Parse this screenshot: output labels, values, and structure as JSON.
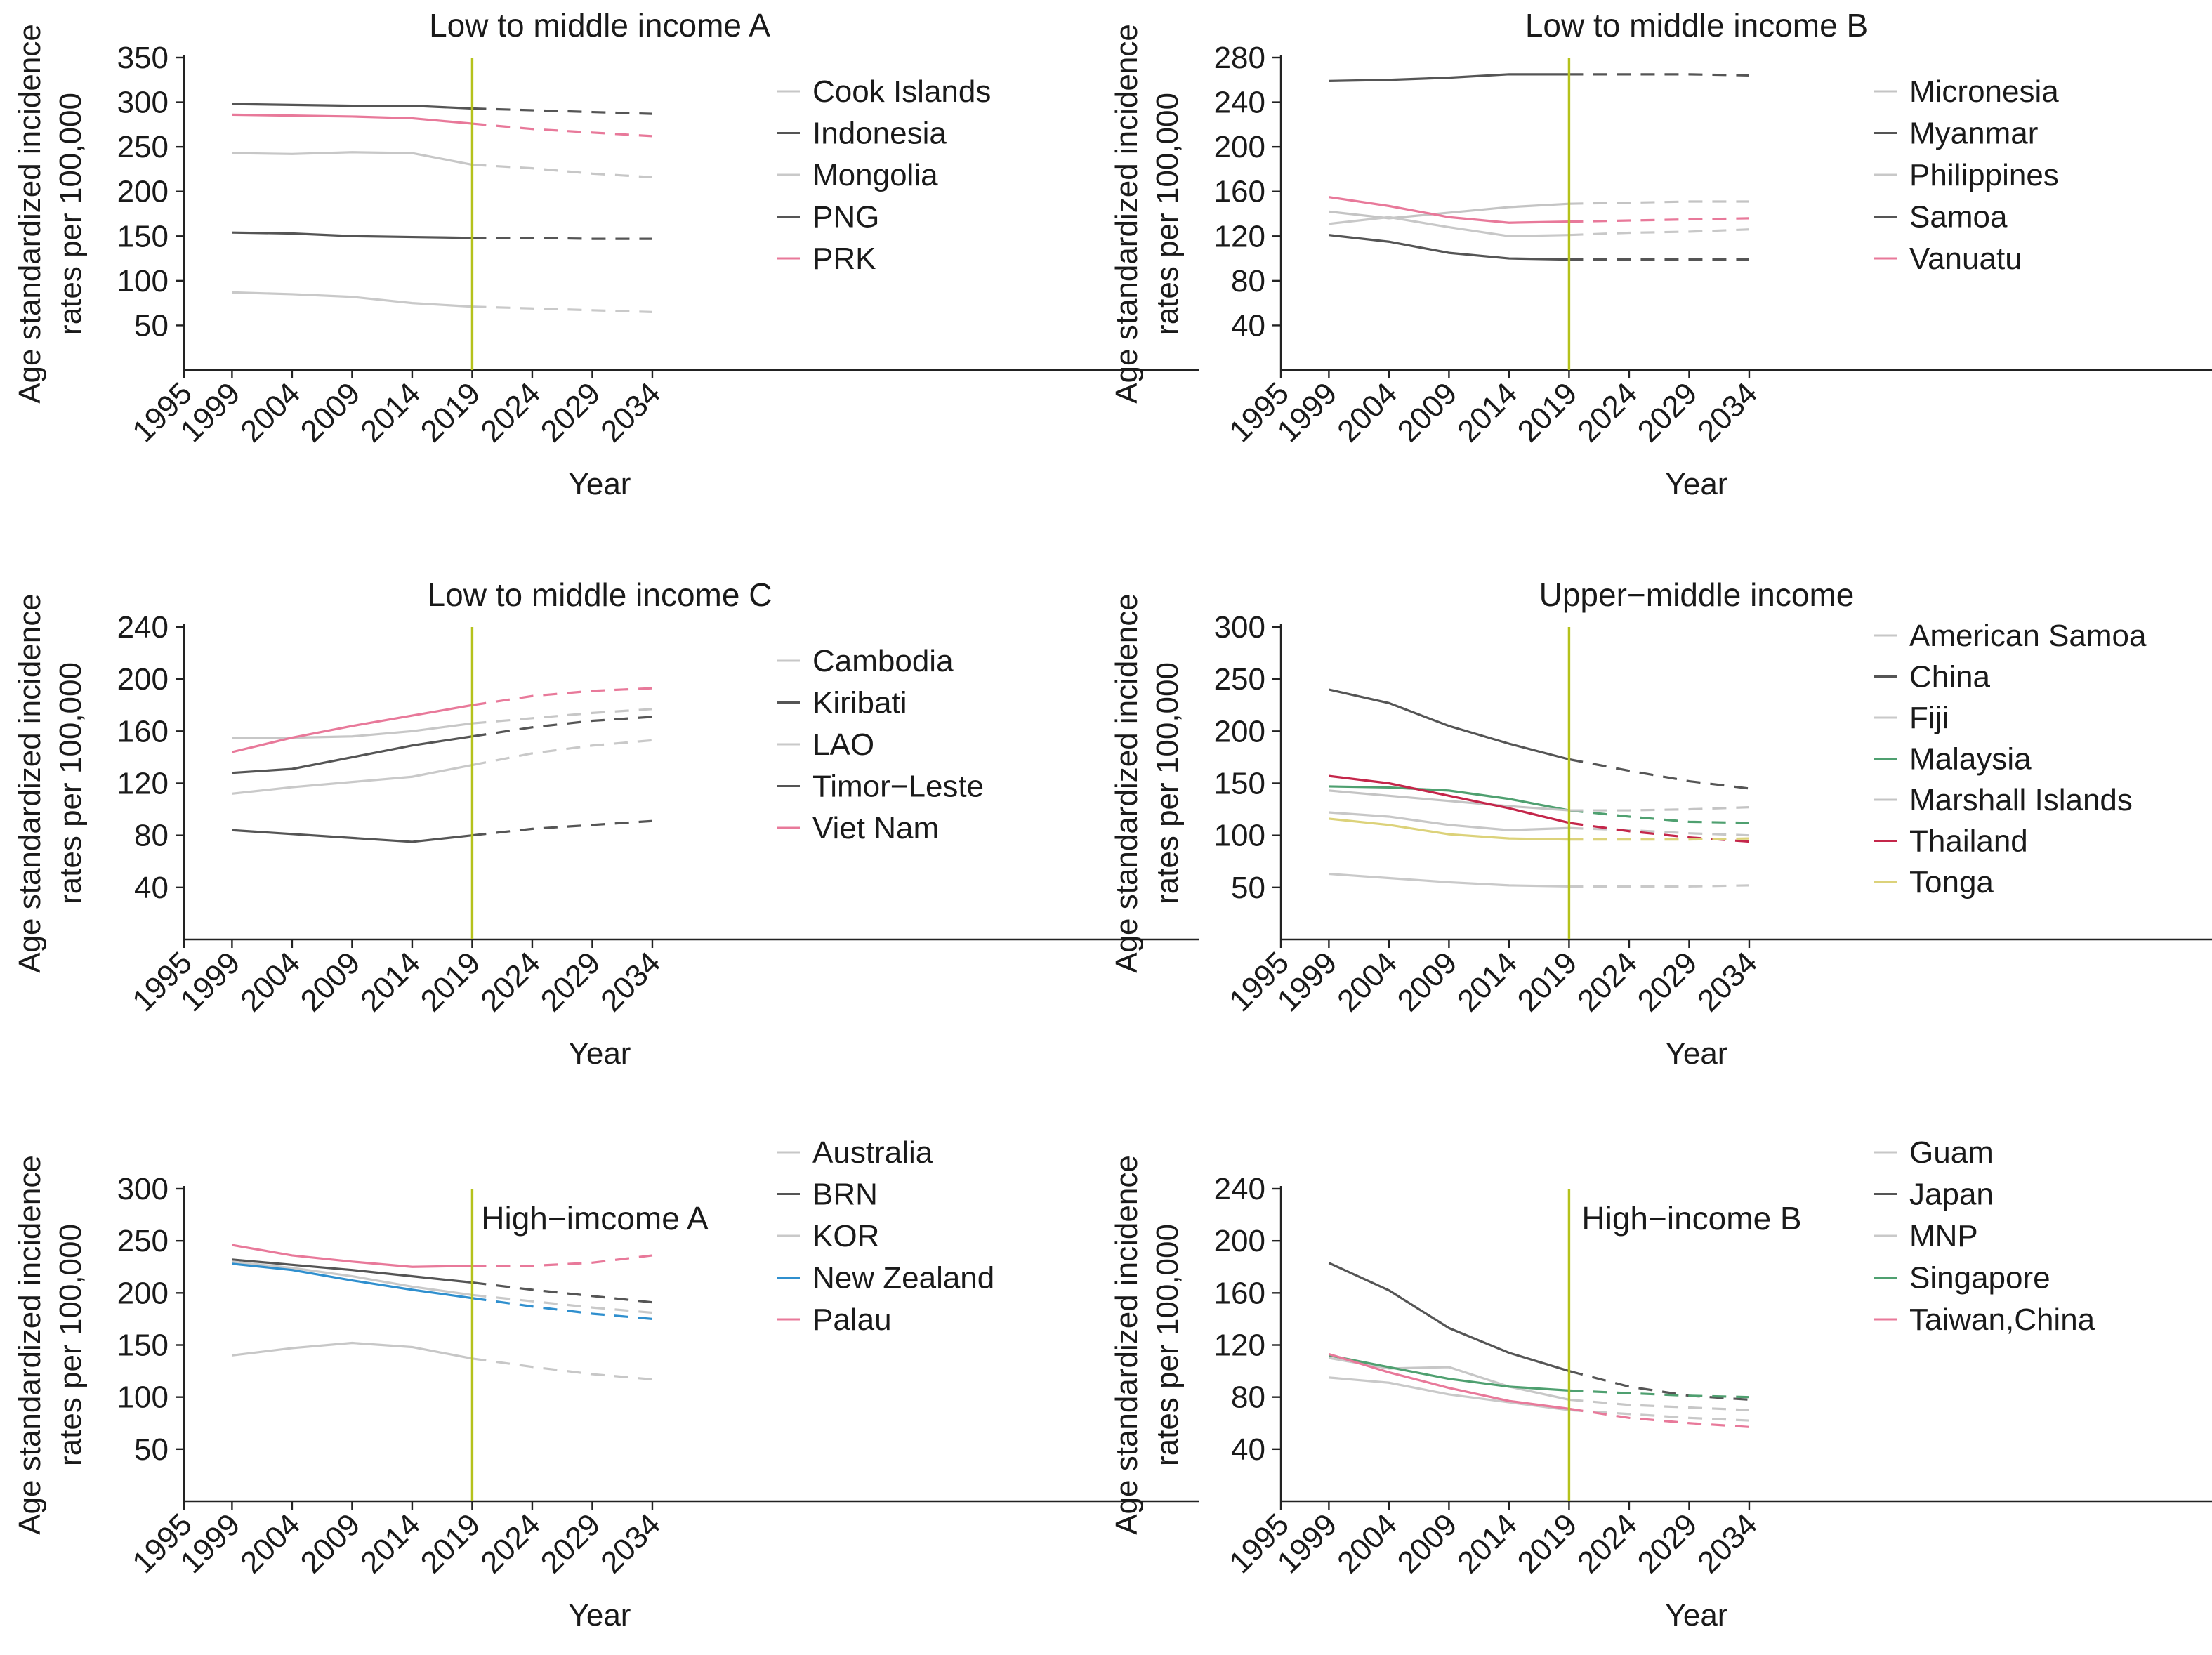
{
  "figure": {
    "ylabel_line1": "Age standardized incidence",
    "ylabel_line2": "rates per 100,000",
    "xlabel": "Year",
    "x_tick_labels": [
      "1995",
      "1999",
      "2004",
      "2009",
      "2014",
      "2019",
      "2024",
      "2029",
      "2034"
    ],
    "divider_year": 2019,
    "divider_color": "#b5c21c"
  },
  "chart_data": [
    {
      "type": "line",
      "title": "Low to middle income A",
      "xlabel": "Year",
      "ylabel": "Age standardized incidence rates per 100,000",
      "x": [
        1999,
        2004,
        2009,
        2014,
        2019,
        2024,
        2029,
        2034
      ],
      "projection_start": 2019,
      "ylim": [
        0,
        350
      ],
      "yticks": [
        50,
        100,
        150,
        200,
        250,
        300,
        350
      ],
      "legend_position": "right",
      "series": [
        {
          "name": "Cook Islands",
          "color": "#c7c7c7",
          "values": [
            243,
            242,
            244,
            243,
            230,
            226,
            220,
            216
          ]
        },
        {
          "name": "Indonesia",
          "color": "#555555",
          "values": [
            298,
            297,
            296,
            296,
            293,
            291,
            289,
            287
          ]
        },
        {
          "name": "Mongolia",
          "color": "#c9c9c9",
          "values": [
            87,
            85,
            82,
            75,
            71,
            69,
            67,
            65
          ]
        },
        {
          "name": "PNG",
          "color": "#555555",
          "values": [
            154,
            153,
            150,
            149,
            148,
            148,
            147,
            147
          ]
        },
        {
          "name": "PRK",
          "color": "#e8799a",
          "values": [
            286,
            285,
            284,
            282,
            276,
            270,
            266,
            262
          ]
        }
      ]
    },
    {
      "type": "line",
      "title": "Low to middle income B",
      "xlabel": "Year",
      "ylabel": "Age standardized incidence rates per 100,000",
      "x": [
        1999,
        2004,
        2009,
        2014,
        2019,
        2024,
        2029,
        2034
      ],
      "projection_start": 2019,
      "ylim": [
        0,
        280
      ],
      "yticks": [
        40,
        80,
        120,
        160,
        200,
        240,
        280
      ],
      "legend_position": "right",
      "series": [
        {
          "name": "Micronesia",
          "color": "#c4c4c4",
          "values": [
            142,
            136,
            141,
            146,
            149,
            150,
            151,
            151
          ]
        },
        {
          "name": "Myanmar",
          "color": "#555555",
          "values": [
            259,
            260,
            262,
            265,
            265,
            265,
            265,
            264
          ]
        },
        {
          "name": "Philippines",
          "color": "#c8c8c8",
          "values": [
            131,
            137,
            128,
            120,
            121,
            123,
            124,
            126
          ]
        },
        {
          "name": "Samoa",
          "color": "#555555",
          "values": [
            121,
            115,
            105,
            100,
            99,
            99,
            99,
            99
          ]
        },
        {
          "name": "Vanuatu",
          "color": "#e8799a",
          "values": [
            155,
            147,
            137,
            132,
            133,
            134,
            135,
            136
          ]
        }
      ]
    },
    {
      "type": "line",
      "title": "Low to middle income C",
      "xlabel": "Year",
      "ylabel": "Age standardized incidence rates per 100,000",
      "x": [
        1999,
        2004,
        2009,
        2014,
        2019,
        2024,
        2029,
        2034
      ],
      "projection_start": 2019,
      "ylim": [
        0,
        240
      ],
      "yticks": [
        40,
        80,
        120,
        160,
        200,
        240
      ],
      "legend_position": "right",
      "series": [
        {
          "name": "Cambodia",
          "color": "#c7c7c7",
          "values": [
            155,
            155,
            156,
            160,
            166,
            170,
            174,
            177
          ]
        },
        {
          "name": "Kiribati",
          "color": "#555555",
          "values": [
            128,
            131,
            140,
            149,
            156,
            163,
            168,
            171
          ]
        },
        {
          "name": "LAO",
          "color": "#c9c9c9",
          "values": [
            112,
            117,
            121,
            125,
            134,
            143,
            149,
            153
          ]
        },
        {
          "name": "Timor−Leste",
          "color": "#555555",
          "values": [
            84,
            81,
            78,
            75,
            80,
            85,
            88,
            91
          ]
        },
        {
          "name": "Viet Nam",
          "color": "#e8799a",
          "values": [
            144,
            155,
            164,
            172,
            180,
            187,
            191,
            193
          ]
        }
      ]
    },
    {
      "type": "line",
      "title": "Upper−middle income",
      "xlabel": "Year",
      "ylabel": "Age standardized incidence rates per 100,000",
      "x": [
        1999,
        2004,
        2009,
        2014,
        2019,
        2024,
        2029,
        2034
      ],
      "projection_start": 2019,
      "ylim": [
        0,
        300
      ],
      "yticks": [
        50,
        100,
        150,
        200,
        250,
        300
      ],
      "legend_position": "right",
      "series": [
        {
          "name": "American Samoa",
          "color": "#c7c7c7",
          "values": [
            122,
            118,
            110,
            105,
            107,
            105,
            102,
            100
          ]
        },
        {
          "name": "China",
          "color": "#555555",
          "values": [
            240,
            227,
            205,
            188,
            173,
            162,
            152,
            145
          ]
        },
        {
          "name": "Fiji",
          "color": "#c9c9c9",
          "values": [
            63,
            59,
            55,
            52,
            51,
            51,
            51,
            52
          ]
        },
        {
          "name": "Malaysia",
          "color": "#4fa070",
          "values": [
            147,
            146,
            143,
            135,
            124,
            118,
            113,
            112
          ]
        },
        {
          "name": "Marshall Islands",
          "color": "#c4c4c4",
          "values": [
            143,
            138,
            133,
            128,
            124,
            124,
            125,
            127
          ]
        },
        {
          "name": "Thailand",
          "color": "#c4264a",
          "values": [
            157,
            150,
            138,
            126,
            112,
            104,
            98,
            94
          ]
        },
        {
          "name": "Tonga",
          "color": "#dcd27a",
          "values": [
            116,
            110,
            101,
            97,
            96,
            96,
            96,
            97
          ]
        }
      ]
    },
    {
      "type": "line",
      "title": "High−imcome A",
      "xlabel": "Year",
      "ylabel": "Age standardized incidence rates per 100,000",
      "x": [
        1999,
        2004,
        2009,
        2014,
        2019,
        2024,
        2029,
        2034
      ],
      "projection_start": 2019,
      "ylim": [
        0,
        300
      ],
      "yticks": [
        50,
        100,
        150,
        200,
        250,
        300
      ],
      "legend_position": "right",
      "series": [
        {
          "name": "Australia",
          "color": "#c7c7c7",
          "values": [
            140,
            147,
            152,
            148,
            137,
            129,
            122,
            117
          ]
        },
        {
          "name": "BRN",
          "color": "#555555",
          "values": [
            232,
            227,
            222,
            216,
            210,
            203,
            197,
            191
          ]
        },
        {
          "name": "KOR",
          "color": "#c9c9c9",
          "values": [
            230,
            224,
            216,
            206,
            198,
            192,
            186,
            181
          ]
        },
        {
          "name": "New Zealand",
          "color": "#2f8fce",
          "values": [
            228,
            222,
            212,
            203,
            195,
            187,
            180,
            175
          ]
        },
        {
          "name": "Palau",
          "color": "#e8799a",
          "values": [
            246,
            236,
            230,
            225,
            226,
            226,
            229,
            236
          ]
        }
      ]
    },
    {
      "type": "line",
      "title": "High−income B",
      "xlabel": "Year",
      "ylabel": "Age standardized incidence rates per 100,000",
      "x": [
        1999,
        2004,
        2009,
        2014,
        2019,
        2024,
        2029,
        2034
      ],
      "projection_start": 2019,
      "ylim": [
        0,
        240
      ],
      "yticks": [
        40,
        80,
        120,
        160,
        200,
        240
      ],
      "legend_position": "right",
      "series": [
        {
          "name": "Guam",
          "color": "#c7c7c7",
          "values": [
            110,
            102,
            103,
            88,
            78,
            74,
            72,
            70
          ]
        },
        {
          "name": "Japan",
          "color": "#555555",
          "values": [
            183,
            162,
            133,
            114,
            100,
            88,
            81,
            78
          ]
        },
        {
          "name": "MNP",
          "color": "#c9c9c9",
          "values": [
            95,
            91,
            82,
            76,
            70,
            67,
            64,
            62
          ]
        },
        {
          "name": "Singapore",
          "color": "#4fa070",
          "values": [
            112,
            103,
            94,
            88,
            85,
            83,
            81,
            80
          ]
        },
        {
          "name": "Taiwan,China",
          "color": "#e8799a",
          "values": [
            113,
            99,
            87,
            77,
            71,
            64,
            60,
            57
          ]
        }
      ]
    }
  ]
}
